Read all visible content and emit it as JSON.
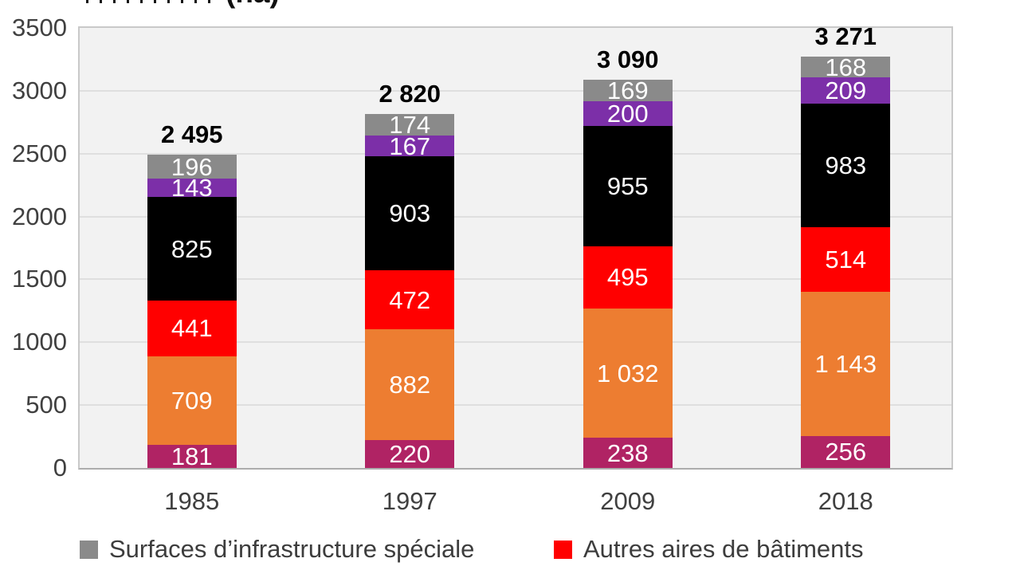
{
  "header": {
    "title_fragment": "(ha)"
  },
  "chart_data": {
    "type": "bar",
    "subtype": "stacked-column",
    "title_partial_visible": "(ha)",
    "categories": [
      "1985",
      "1997",
      "2009",
      "2018"
    ],
    "series": [
      {
        "name": "series-magenta",
        "color": "#B02364",
        "values": [
          181,
          220,
          238,
          256
        ],
        "labels": [
          "181",
          "220",
          "238",
          "256"
        ]
      },
      {
        "name": "series-orange",
        "color": "#ED7D31",
        "values": [
          709,
          882,
          1032,
          1143
        ],
        "labels": [
          "709",
          "882",
          "1 032",
          "1 143"
        ]
      },
      {
        "name": "series-red",
        "color": "#FF0000",
        "values": [
          441,
          472,
          495,
          514
        ],
        "labels": [
          "441",
          "472",
          "495",
          "514"
        ]
      },
      {
        "name": "series-black",
        "color": "#000000",
        "values": [
          825,
          903,
          955,
          983
        ],
        "labels": [
          "825",
          "903",
          "955",
          "983"
        ]
      },
      {
        "name": "series-purple",
        "color": "#7C2FA8",
        "values": [
          143,
          167,
          200,
          209
        ],
        "labels": [
          "143",
          "167",
          "200",
          "209"
        ]
      },
      {
        "name": "series-gray",
        "color": "#8A8A8A",
        "values": [
          196,
          174,
          169,
          168
        ],
        "labels": [
          "196",
          "174",
          "169",
          "168"
        ]
      }
    ],
    "totals": {
      "values": [
        2495,
        2820,
        3090,
        3271
      ],
      "labels": [
        "2 495",
        "2 820",
        "3 090",
        "3 271"
      ]
    },
    "ylim": [
      0,
      3500
    ],
    "yticks": [
      0,
      500,
      1000,
      1500,
      2000,
      2500,
      3000,
      3500
    ],
    "grid": true,
    "legend_position": "bottom",
    "legend": [
      {
        "label": "Surfaces d’infrastructure spéciale",
        "color": "#8A8A8A"
      },
      {
        "label": "Autres aires de bâtiments",
        "color": "#FF0000"
      }
    ],
    "colors": {
      "plot_background": "#F2F2F2",
      "gridline": "#DFDFDF",
      "plot_border": "#C9C9C9",
      "axis_text": "#404040"
    }
  }
}
